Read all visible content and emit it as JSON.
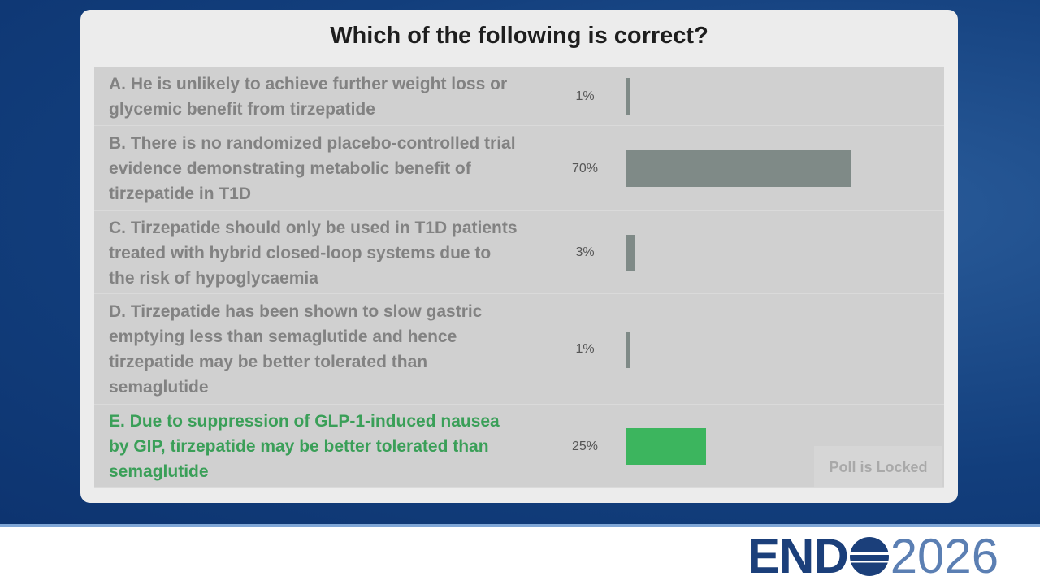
{
  "poll": {
    "question": "Which of the following is correct?",
    "options": [
      {
        "lines": [
          "A. He is unlikely to achieve further weight loss or",
          "glycemic benefit from tirzepatide"
        ],
        "value": 1,
        "value_label": "1%",
        "color": "#7f8a87"
      },
      {
        "lines": [
          "B. There is no randomized placebo-controlled trial",
          "evidence demonstrating metabolic benefit of",
          "tirzepatide in T1D"
        ],
        "value": 70,
        "value_label": "70%",
        "color": "#7f8a87"
      },
      {
        "lines": [
          "C. Tirzepatide should only be used in T1D patients",
          "treated with hybrid closed-loop systems due to",
          "the risk of hypoglycaemia"
        ],
        "value": 3,
        "value_label": "3%",
        "color": "#7f8a87"
      },
      {
        "lines": [
          "D. Tirzepatide has been shown to slow gastric",
          "emptying less than semaglutide and hence",
          "tirzepatide may be better tolerated than",
          "semaglutide"
        ],
        "value": 1,
        "value_label": "1%",
        "color": "#7f8a87"
      },
      {
        "lines": [
          "E. Due to suppression of GLP-1-induced nausea",
          "by GIP, tirzepatide may be better tolerated than",
          "semaglutide"
        ],
        "value": 25,
        "value_label": "25%",
        "color": "#3cb55e"
      }
    ],
    "status": "Poll is Locked"
  },
  "logo": {
    "left": "END",
    "right": "2026"
  }
}
